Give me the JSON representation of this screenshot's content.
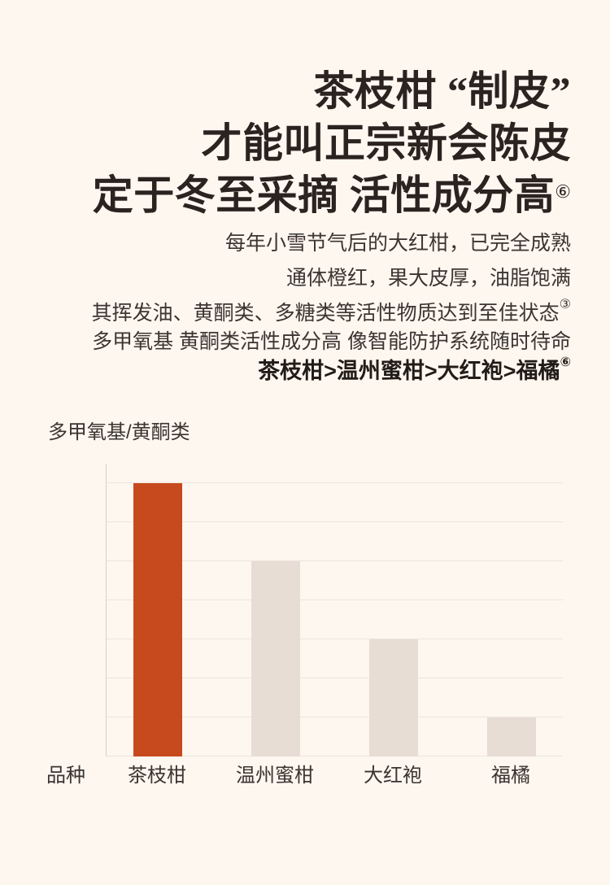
{
  "page": {
    "background": "#fdf7f0"
  },
  "hero": {
    "title_lines": [
      {
        "text": "茶枝柑 “制皮”",
        "sup": ""
      },
      {
        "text": "才能叫正宗新会陈皮",
        "sup": ""
      },
      {
        "text": "定于冬至采摘 活性成分高",
        "sup": "⑥"
      }
    ]
  },
  "body": {
    "lines": [
      {
        "text": "每年小雪节气后的大红柑，已完全成熟",
        "sup": ""
      },
      {
        "text": "通体橙红，果大皮厚，油脂饱满",
        "sup": ""
      },
      {
        "text": "其挥发油、黄酮类、多糖类等活性物质达到至佳状态",
        "sup": "③"
      },
      {
        "text": "多甲氧基 黄酮类活性成分高 像智能防护系统随时待命",
        "sup": ""
      },
      {
        "text": "茶枝柑>温州蜜柑>大红袍>福橘",
        "sup": "⑥"
      }
    ]
  },
  "chart_data": {
    "type": "bar",
    "title": "多甲氧基/黄酮类",
    "xlabel": "品种",
    "categories": [
      "茶枝柑",
      "温州蜜柑",
      "大红袍",
      "福橘"
    ],
    "values": [
      7,
      5,
      3,
      1
    ],
    "ylim": [
      0,
      7.5
    ],
    "gridline_count": 7,
    "grid": true,
    "legend": false,
    "highlight_index": 0,
    "colors": {
      "highlight_bar": "#c74a1e",
      "default_bar": "#e8ddd4",
      "gridline": "#ede4dc",
      "axis": "#d8cfc7"
    }
  }
}
